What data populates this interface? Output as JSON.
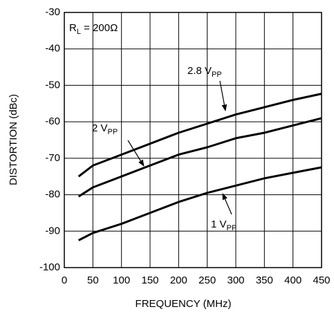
{
  "chart_data": {
    "type": "line",
    "x_label": "FREQUENCY (MHz)",
    "y_label": "DISTORTION (dBc)",
    "annotation": {
      "text": "R",
      "sub": "L",
      "rest": " = 200Ω"
    },
    "x": [
      25,
      50,
      100,
      150,
      200,
      250,
      300,
      350,
      400,
      450
    ],
    "series": [
      {
        "name": "2.8 V",
        "name_sub": "PP",
        "color": "#000000",
        "values": [
          -75,
          -72,
          -69,
          -66,
          -63,
          -60.5,
          -58,
          -56,
          -54,
          -52.3
        ]
      },
      {
        "name": "2 V",
        "name_sub": "PP",
        "color": "#000000",
        "values": [
          -80.5,
          -78,
          -75,
          -72,
          -69,
          -67,
          -64.5,
          -63,
          -61,
          -59
        ]
      },
      {
        "name": "1 V",
        "name_sub": "PP",
        "color": "#000000",
        "values": [
          -92.5,
          -90.5,
          -88,
          -85,
          -82,
          -79.5,
          -77.5,
          -75.5,
          -74,
          -72.5
        ]
      }
    ],
    "xlim": [
      0,
      450
    ],
    "xticks": [
      0,
      50,
      100,
      150,
      200,
      250,
      300,
      350,
      400,
      450
    ],
    "ylim": [
      -100,
      -30
    ],
    "yticks": [
      -100,
      -90,
      -80,
      -70,
      -60,
      -50,
      -40,
      -30
    ],
    "grid": true
  }
}
